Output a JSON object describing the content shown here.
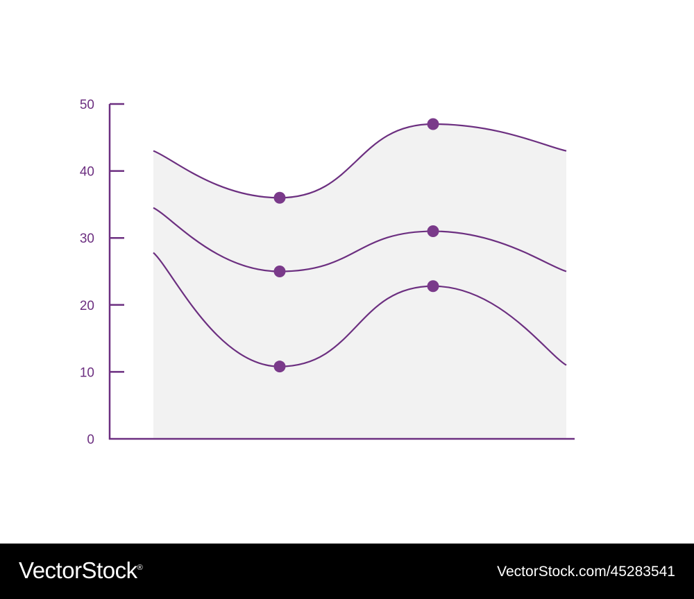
{
  "chart_data": {
    "type": "line",
    "title": "",
    "xlabel": "",
    "ylabel": "",
    "ylim": [
      0,
      50
    ],
    "yticks": [
      0,
      10,
      20,
      30,
      40,
      50
    ],
    "x": [
      0,
      1,
      2,
      3
    ],
    "series": [
      {
        "values": [
          43,
          36,
          47,
          43
        ]
      },
      {
        "values": [
          34.5,
          25,
          31,
          25
        ]
      },
      {
        "values": [
          27.8,
          10.8,
          22.8,
          11
        ]
      }
    ],
    "markers_on_points": [
      1,
      2
    ],
    "shaded_area": true,
    "grid": false,
    "legend": "none",
    "colors": {
      "line": "#6c2f80",
      "marker": "#7a3a8a",
      "fill": "#f2f2f2",
      "axis": "#6c2f80"
    }
  },
  "watermark": {
    "brand": "VectorStock",
    "registered": "®",
    "ref": "VectorStock.com/45283541"
  }
}
